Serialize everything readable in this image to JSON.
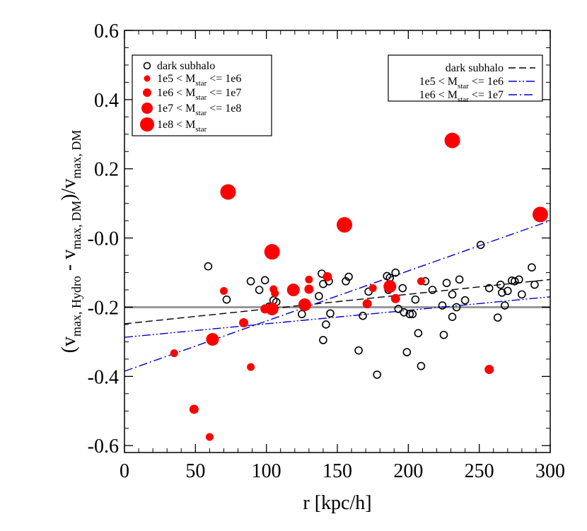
{
  "chart_data": {
    "type": "scatter",
    "title": "",
    "xlabel": "r [kpc/h]",
    "ylabel": {
      "parts": [
        {
          "t": "(v",
          "sub": false
        },
        {
          "t": "max, Hydro",
          "sub": true
        },
        {
          "t": " - v",
          "sub": false
        },
        {
          "t": "max, DM",
          "sub": true
        },
        {
          "t": ")/v",
          "sub": false
        },
        {
          "t": "max, DM",
          "sub": true
        }
      ]
    },
    "xlim": [
      0,
      300
    ],
    "ylim": [
      -0.62,
      0.6
    ],
    "xticks": [
      0,
      50,
      100,
      150,
      200,
      250,
      300
    ],
    "xtick_labels": [
      "0",
      "50",
      "100",
      "150",
      "200",
      "250",
      "300"
    ],
    "yticks": [
      -0.6,
      -0.4,
      -0.2,
      0.0,
      0.2,
      0.4,
      0.6
    ],
    "ytick_labels": [
      "-0.6",
      "-0.4",
      "-0.2",
      "-0.0",
      "0.2",
      "0.4",
      "0.6"
    ],
    "grid": false,
    "reference_line": {
      "y": -0.2,
      "color": "#999999"
    },
    "legend_points": {
      "placement": "top-left",
      "entries": [
        {
          "key": "dark",
          "parts": [
            {
              "t": "dark subhalo",
              "sub": false
            }
          ],
          "marker": "open-circle",
          "color": "#000000"
        },
        {
          "key": "s1",
          "parts": [
            {
              "t": "1e5 < M",
              "sub": false
            },
            {
              "t": "star",
              "sub": true
            },
            {
              "t": " <= 1e6",
              "sub": false
            }
          ],
          "marker": "filled-circle",
          "color": "#ff0000"
        },
        {
          "key": "s2",
          "parts": [
            {
              "t": "1e6 < M",
              "sub": false
            },
            {
              "t": "star",
              "sub": true
            },
            {
              "t": " <= 1e7",
              "sub": false
            }
          ],
          "marker": "filled-circle",
          "color": "#ff0000"
        },
        {
          "key": "s3",
          "parts": [
            {
              "t": "1e7 < M",
              "sub": false
            },
            {
              "t": "star",
              "sub": true
            },
            {
              "t": " <= 1e8",
              "sub": false
            }
          ],
          "marker": "filled-circle",
          "color": "#ff0000"
        },
        {
          "key": "s4",
          "parts": [
            {
              "t": "1e8 < M",
              "sub": false
            },
            {
              "t": "star",
              "sub": true
            }
          ],
          "marker": "filled-circle",
          "color": "#ff0000"
        }
      ]
    },
    "legend_lines": {
      "placement": "top-right",
      "entries": [
        {
          "parts": [
            {
              "t": "dark subhalo",
              "sub": false
            }
          ],
          "dash": "dashed",
          "color": "#000000"
        },
        {
          "parts": [
            {
              "t": "1e5 < M",
              "sub": false
            },
            {
              "t": "star",
              "sub": true
            },
            {
              "t": " <= 1e6",
              "sub": false
            }
          ],
          "dash": "dash-dot-dot",
          "color": "#0000cc"
        },
        {
          "parts": [
            {
              "t": "1e6 < M",
              "sub": false
            },
            {
              "t": "star",
              "sub": true
            },
            {
              "t": " <= 1e7",
              "sub": false
            }
          ],
          "dash": "dash-dot",
          "color": "#0000cc"
        }
      ]
    },
    "fit_lines": [
      {
        "series": "dark subhalo",
        "x": [
          0,
          300
        ],
        "y": [
          -0.248,
          -0.12
        ],
        "dash": "dashed",
        "color": "#000000"
      },
      {
        "series": "1e5 < Mstar <= 1e6",
        "x": [
          0,
          300
        ],
        "y": [
          -0.287,
          -0.17
        ],
        "dash": "dash-dot-dot",
        "color": "#0000cc"
      },
      {
        "series": "1e6 < Mstar <= 1e7",
        "x": [
          0,
          300
        ],
        "y": [
          -0.385,
          0.05
        ],
        "dash": "dash-dot",
        "color": "#0000cc"
      }
    ],
    "series": [
      {
        "name": "dark subhalo",
        "marker": "open-circle",
        "color": "#000000",
        "points": [
          [
            59,
            -0.082
          ],
          [
            72,
            -0.178
          ],
          [
            89,
            -0.125
          ],
          [
            95,
            -0.15
          ],
          [
            99,
            -0.122
          ],
          [
            102,
            -0.198
          ],
          [
            105,
            -0.18
          ],
          [
            107,
            -0.185
          ],
          [
            125,
            -0.22
          ],
          [
            137,
            -0.168
          ],
          [
            139,
            -0.103
          ],
          [
            140,
            -0.295
          ],
          [
            140,
            -0.133
          ],
          [
            142,
            -0.25
          ],
          [
            144,
            -0.125
          ],
          [
            145,
            -0.218
          ],
          [
            156,
            -0.125
          ],
          [
            158,
            -0.112
          ],
          [
            165,
            -0.325
          ],
          [
            168,
            -0.225
          ],
          [
            172,
            -0.155
          ],
          [
            178,
            -0.395
          ],
          [
            185,
            -0.11
          ],
          [
            186,
            -0.15
          ],
          [
            187,
            -0.115
          ],
          [
            191,
            -0.1
          ],
          [
            193,
            -0.205
          ],
          [
            196,
            -0.145
          ],
          [
            197,
            -0.215
          ],
          [
            199,
            -0.33
          ],
          [
            201,
            -0.22
          ],
          [
            203,
            -0.22
          ],
          [
            205,
            -0.178
          ],
          [
            207,
            -0.275
          ],
          [
            209,
            -0.37
          ],
          [
            212,
            -0.125
          ],
          [
            217,
            -0.15
          ],
          [
            224,
            -0.195
          ],
          [
            225,
            -0.28
          ],
          [
            227,
            -0.13
          ],
          [
            231,
            -0.163
          ],
          [
            231,
            -0.228
          ],
          [
            234,
            -0.2
          ],
          [
            236,
            -0.12
          ],
          [
            240,
            -0.18
          ],
          [
            251,
            -0.02
          ],
          [
            257,
            -0.145
          ],
          [
            263,
            -0.23
          ],
          [
            265,
            -0.135
          ],
          [
            266,
            -0.158
          ],
          [
            268,
            -0.195
          ],
          [
            270,
            -0.153
          ],
          [
            273,
            -0.123
          ],
          [
            275,
            -0.125
          ],
          [
            278,
            -0.12
          ],
          [
            280,
            -0.163
          ],
          [
            287,
            -0.085
          ],
          [
            289,
            -0.135
          ]
        ]
      },
      {
        "name": "1e5 < Mstar <= 1e6",
        "marker": "filled-circle",
        "color": "#ff0000",
        "points": [
          [
            35,
            -0.333
          ],
          [
            60,
            -0.575
          ],
          [
            70,
            -0.153
          ],
          [
            89,
            -0.373
          ],
          [
            105,
            -0.148
          ],
          [
            106,
            -0.16
          ],
          [
            130,
            -0.12
          ],
          [
            175,
            -0.145
          ],
          [
            209,
            -0.125
          ]
        ]
      },
      {
        "name": "1e6 < Mstar <= 1e7",
        "marker": "filled-circle",
        "color": "#ff0000",
        "points": [
          [
            49,
            -0.495
          ],
          [
            84,
            -0.245
          ],
          [
            99,
            -0.205
          ],
          [
            103,
            -0.205
          ],
          [
            128,
            -0.193
          ],
          [
            130,
            -0.148
          ],
          [
            143,
            -0.112
          ],
          [
            171,
            -0.19
          ],
          [
            191,
            -0.175
          ],
          [
            257,
            -0.38
          ]
        ]
      },
      {
        "name": "1e7 < Mstar <= 1e8",
        "marker": "filled-circle",
        "color": "#ff0000",
        "points": [
          [
            62,
            -0.293
          ],
          [
            104,
            -0.205
          ],
          [
            119,
            -0.15
          ],
          [
            127,
            -0.193
          ],
          [
            187,
            -0.14
          ]
        ]
      },
      {
        "name": "1e8 < Mstar",
        "marker": "filled-circle",
        "color": "#ff0000",
        "points": [
          [
            73,
            0.133
          ],
          [
            104,
            -0.04
          ],
          [
            155,
            0.038
          ],
          [
            231,
            0.282
          ],
          [
            293,
            0.068
          ]
        ]
      }
    ]
  }
}
